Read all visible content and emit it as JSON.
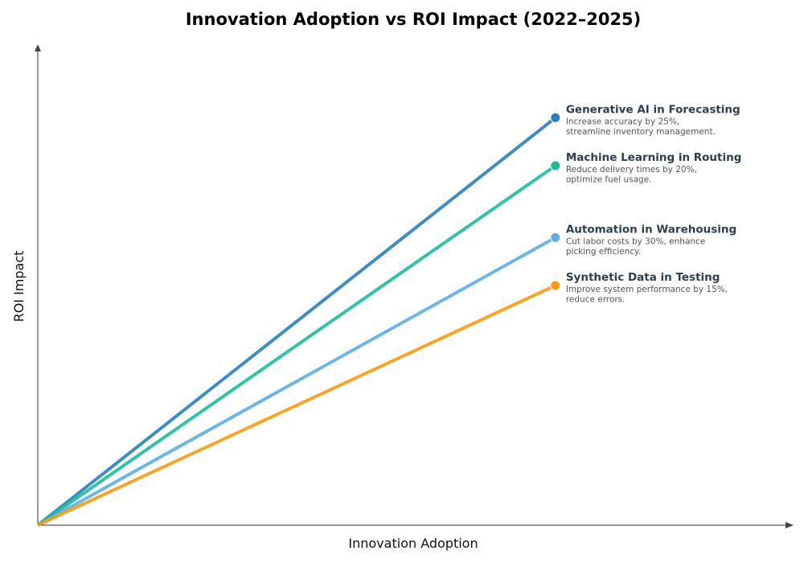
{
  "chart_data": {
    "type": "line",
    "title": "Innovation Adoption vs ROI Impact (2022–2025)",
    "xlabel": "Innovation Adoption",
    "ylabel": "ROI Impact",
    "xlim": [
      0,
      14.6
    ],
    "ylim": [
      0,
      10
    ],
    "grid": false,
    "legend": "annotations at line ends",
    "series": [
      {
        "name": "Generative AI in Forecasting",
        "description": [
          "Increase accuracy by 25%,",
          "streamline inventory management."
        ],
        "x": [
          0,
          10
        ],
        "y": [
          0,
          8.5
        ],
        "color": "#2980b9"
      },
      {
        "name": "Machine Learning in Routing",
        "description": [
          "Reduce delivery times by 20%,",
          "optimize fuel usage."
        ],
        "x": [
          0,
          10
        ],
        "y": [
          0,
          7.5
        ],
        "color": "#1abc9c"
      },
      {
        "name": "Automation in Warehousing",
        "description": [
          "Cut labor costs by 30%, enhance",
          "picking efficiency."
        ],
        "x": [
          0,
          10
        ],
        "y": [
          0,
          6
        ],
        "color": "#5dade2"
      },
      {
        "name": "Synthetic Data in Testing",
        "description": [
          "Improve system performance by 15%,",
          "reduce errors."
        ],
        "x": [
          0,
          10
        ],
        "y": [
          0,
          5
        ],
        "color": "#f39c12"
      }
    ]
  }
}
